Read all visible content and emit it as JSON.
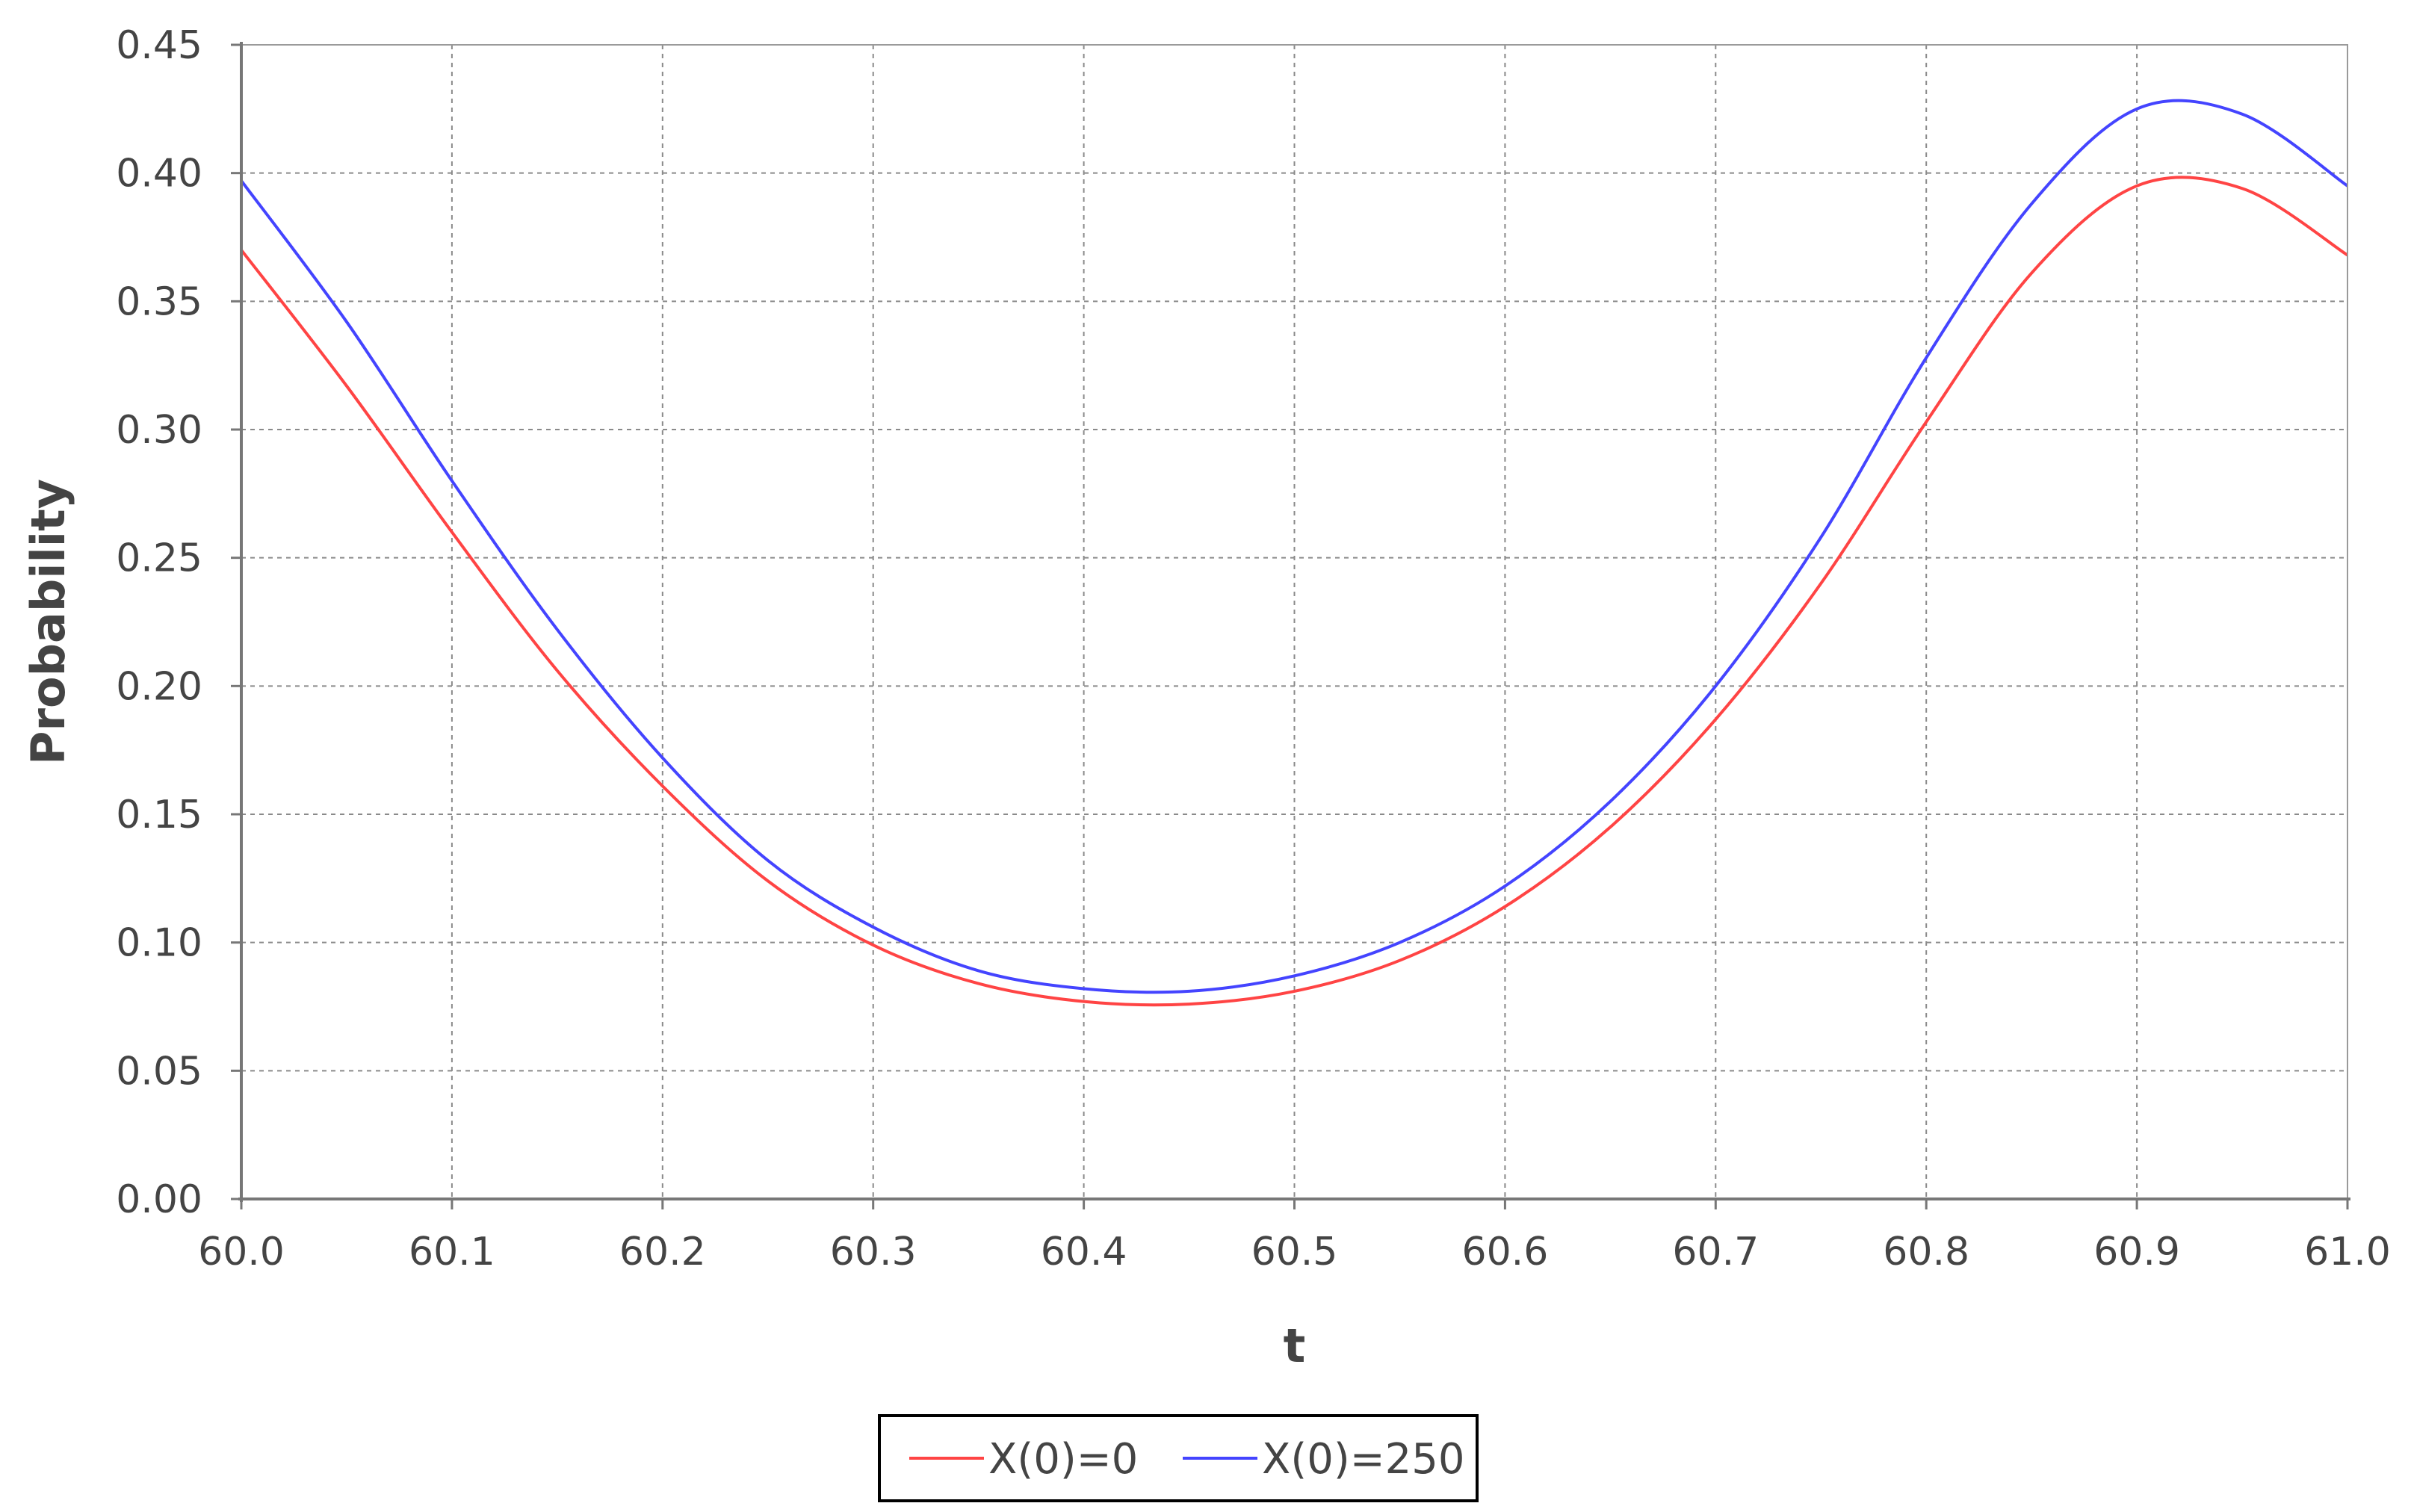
{
  "chart_data": {
    "type": "line",
    "title": "",
    "xlabel": "t",
    "ylabel": "Probability",
    "xlim": [
      60.0,
      61.0
    ],
    "ylim": [
      0.0,
      0.45
    ],
    "x_ticks": [
      "60.0",
      "60.1",
      "60.2",
      "60.3",
      "60.4",
      "60.5",
      "60.6",
      "60.7",
      "60.8",
      "60.9",
      "61.0"
    ],
    "y_ticks": [
      "0.00",
      "0.05",
      "0.10",
      "0.15",
      "0.20",
      "0.25",
      "0.30",
      "0.35",
      "0.40",
      "0.45"
    ],
    "grid": true,
    "legend_position": "bottom-center",
    "x": [
      60.0,
      60.05,
      60.1,
      60.15,
      60.2,
      60.25,
      60.3,
      60.35,
      60.4,
      60.45,
      60.5,
      60.55,
      60.6,
      60.65,
      60.7,
      60.75,
      60.8,
      60.85,
      60.9,
      60.95,
      61.0
    ],
    "series": [
      {
        "name": "X(0)=0",
        "color": "#ff4444",
        "values": [
          0.37,
          0.317,
          0.26,
          0.206,
          0.161,
          0.124,
          0.099,
          0.084,
          0.077,
          0.076,
          0.081,
          0.093,
          0.114,
          0.145,
          0.187,
          0.24,
          0.303,
          0.361,
          0.395,
          0.394,
          0.368
        ]
      },
      {
        "name": "X(0)=250",
        "color": "#4444ff",
        "values": [
          0.397,
          0.342,
          0.28,
          0.222,
          0.172,
          0.132,
          0.106,
          0.089,
          0.082,
          0.081,
          0.087,
          0.1,
          0.122,
          0.155,
          0.2,
          0.258,
          0.328,
          0.388,
          0.425,
          0.423,
          0.395
        ]
      }
    ]
  }
}
